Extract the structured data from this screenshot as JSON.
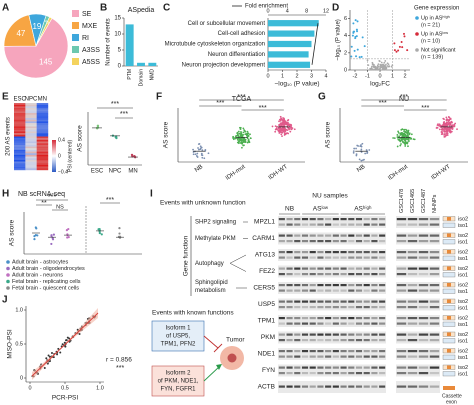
{
  "A": {
    "letter": "A",
    "slices": [
      {
        "name": "SE",
        "value": 145,
        "color": "#f6a5bd"
      },
      {
        "name": "MXE",
        "value": 47,
        "color": "#f7a543"
      },
      {
        "name": "RI",
        "value": 19,
        "color": "#3ea7dc"
      },
      {
        "name": "A3SS",
        "value": 4,
        "color": "#6cc8b0"
      },
      {
        "name": "A5SS",
        "value": 3,
        "color": "#f4d35e"
      }
    ]
  },
  "B": {
    "letter": "B",
    "title": "ASpedia",
    "y_label": "Number of events",
    "categories": [
      "PTM",
      "Domain",
      "NMD"
    ],
    "values": [
      13,
      1,
      1
    ],
    "ylim": [
      0,
      15
    ],
    "yticks": [
      0,
      5,
      10,
      15
    ],
    "color": "#3cbbd8"
  },
  "C": {
    "letter": "C",
    "legend": "Fold enrichment",
    "top_ticks": [
      0,
      4,
      8,
      12
    ],
    "terms": [
      "Cell or subcellular movement",
      "Cell-cell adhesion",
      "Microtubule cytoskeleton organization",
      "Neuron differentiation",
      "Neuron projection development"
    ],
    "values": [
      3.5,
      3.2,
      3.0,
      2.8,
      2.9
    ],
    "xlim": [
      0,
      4
    ],
    "xticks": [
      0,
      1,
      2,
      3,
      4
    ],
    "x_label": "−log₁₀ (P value)",
    "color": "#3cbbd8"
  },
  "D": {
    "letter": "D",
    "x_label": "log₂FC",
    "y_label": "−log₁₀ (P value)",
    "xticks": [
      -2,
      -1,
      0,
      1,
      2
    ],
    "yticks": [
      0,
      2,
      4,
      6
    ],
    "legend_title": "Gene expression",
    "legend": [
      {
        "text": "Up in ASʰⁱᵍʰ",
        "n": "(n = 21)",
        "color": "#3ea7dc"
      },
      {
        "text": "Up in ASˡᵒʷ",
        "n": "(n = 10)",
        "color": "#d62b3a"
      },
      {
        "text": "Not significant",
        "n": "(n = 139)",
        "color": "#aaaaaa"
      }
    ]
  },
  "E": {
    "letter": "E",
    "row_label": "200 AS events",
    "columns": [
      "ESC",
      "NPC",
      "MN"
    ],
    "colorbar_ticks": [
      "0.4",
      "0",
      "−0.4"
    ],
    "colorbar_label": "PSI (centered)",
    "y_label": "AS score",
    "sig": [
      "***",
      "***"
    ]
  },
  "F": {
    "letter": "F",
    "title": "TCGA",
    "y_label": "AS score",
    "categories": [
      "NB",
      "IDH-mut",
      "IDH-WT"
    ],
    "sig": [
      "***",
      "***",
      "***"
    ]
  },
  "G": {
    "letter": "G",
    "title": "NU",
    "y_label": "AS score",
    "categories": [
      "NB",
      "IDH-mut",
      "IDH-WT"
    ],
    "sig": [
      "***",
      "***",
      "***"
    ]
  },
  "H": {
    "letter": "H",
    "title": "NB scRNA-seq",
    "y_label": "AS score",
    "sig": [
      "***",
      "**",
      "NS",
      "***"
    ],
    "legend": [
      {
        "text": "Adult brain - astrocytes",
        "color": "#4a90c8"
      },
      {
        "text": "Adult brain - oligodendrocytes",
        "color": "#9a6cc0"
      },
      {
        "text": "Adult brain - neurons",
        "color": "#c070c0"
      },
      {
        "text": "Fetal brain - replicating cells",
        "color": "#3aa98a"
      },
      {
        "text": "Fetal brain - quiescent cells",
        "color": "#8a8a8a"
      }
    ]
  },
  "I": {
    "letter": "I",
    "unknown_header": "Events with unknown function",
    "samples_header": "NU samples",
    "groups": [
      "NB",
      "ASˡᵒʷ",
      "ASʰⁱᵍʰ"
    ],
    "cell_lines": [
      "GSC1478",
      "GSC1465",
      "GSC1487",
      "NHNPs"
    ],
    "function_axis": "Gene function",
    "functions": [
      "SHP2 signaling",
      "Methylate PKM",
      "Autophagy",
      "Sphingolipid",
      "metabolism"
    ],
    "genes": [
      "MPZL1",
      "CARM1",
      "ATG13",
      "FEZ2",
      "CERS5",
      "USP5",
      "TPM1",
      "PKM",
      "NDE1",
      "FYN",
      "ACTB"
    ],
    "isoforms": [
      "iso2",
      "iso1"
    ],
    "known_header": "Events with known functions",
    "isoform1": [
      "Isoform 1",
      "of USP5,",
      "TPM1, PFN2"
    ],
    "isoform2": [
      "Isoform 2",
      "of PKM, NDE1,",
      "FYN, FGFR1"
    ],
    "tumor": "Tumor",
    "cassette": [
      "Cassette",
      "exon"
    ]
  },
  "J": {
    "letter": "J",
    "x_label": "PCR-PSI",
    "y_label": "MISO-PSI",
    "xticks": [
      "0",
      "0.5",
      "1.0"
    ],
    "yticks": [
      "0",
      "0.5",
      "1.0"
    ],
    "r": "r = 0.856",
    "sig": "***"
  }
}
